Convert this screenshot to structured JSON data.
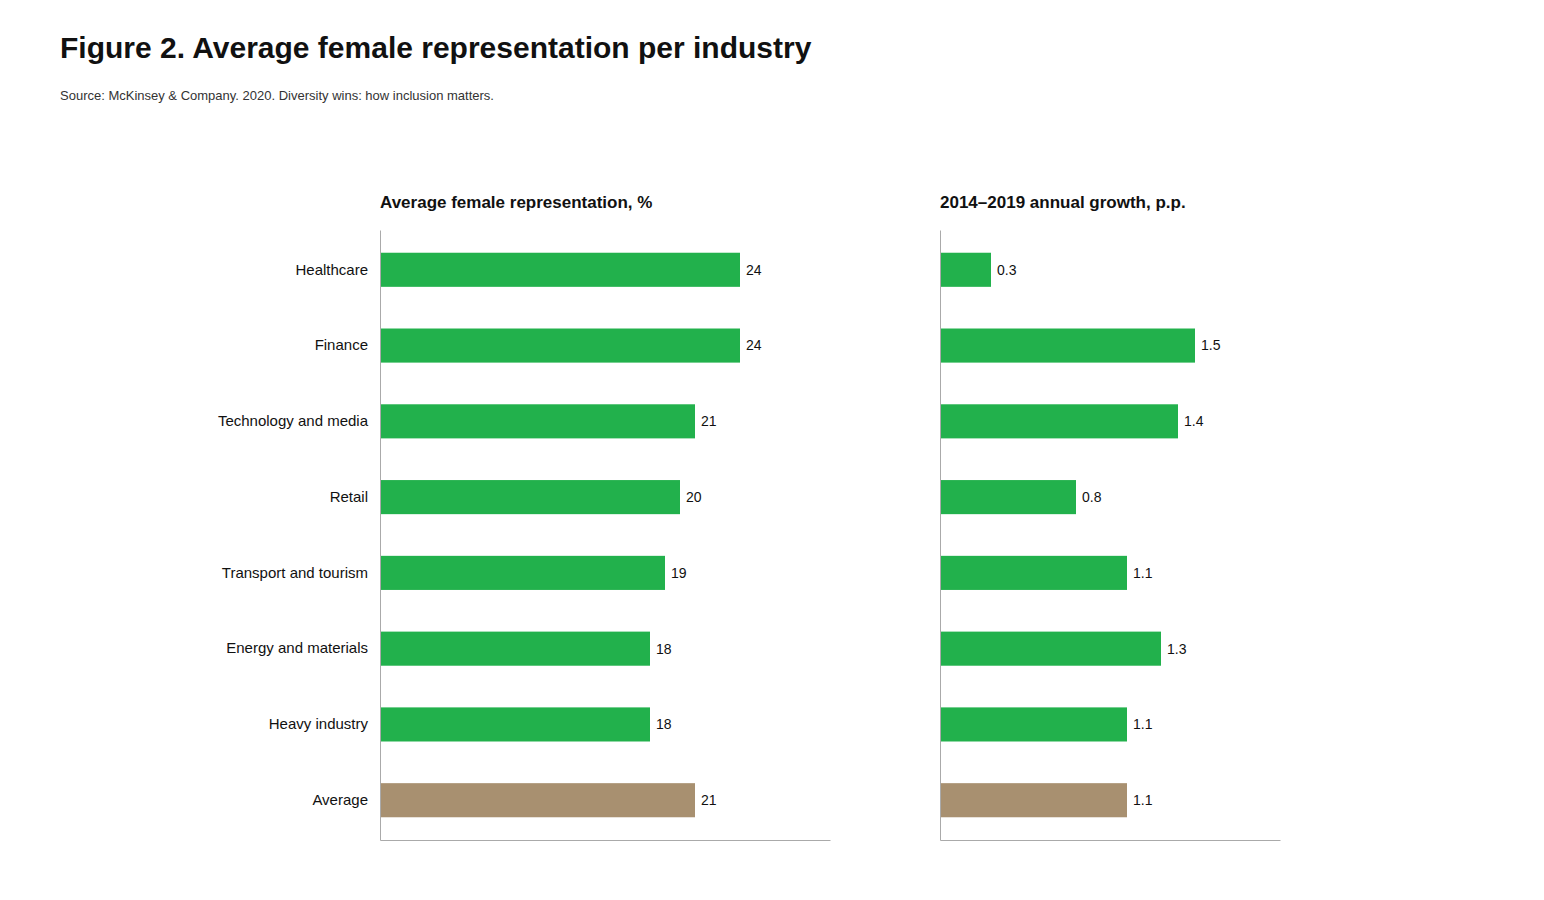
{
  "chart_data": [
    {
      "type": "bar",
      "orientation": "horizontal",
      "title": "Figure 2. Average female representation per industry",
      "subtitle": "Source: McKinsey & Company. 2020. Diversity wins: how inclusion matters.",
      "xlabel": "Average female representation, %",
      "categories": [
        "Healthcare",
        "Finance",
        "Technology and media",
        "Retail",
        "Transport and tourism",
        "Energy and materials",
        "Heavy industry",
        "Average"
      ],
      "values": [
        24,
        24,
        21,
        20,
        19,
        18,
        18,
        21
      ],
      "colors": [
        "#22B14C",
        "#22B14C",
        "#22B14C",
        "#22B14C",
        "#22B14C",
        "#22B14C",
        "#22B14C",
        "#A89070"
      ],
      "xlim": [
        0,
        30
      ],
      "data_labels": true,
      "tick_labels": "y",
      "grid": false
    },
    {
      "type": "bar",
      "orientation": "horizontal",
      "xlabel": "2014–2019 annual growth, p.p.",
      "categories": [
        "Healthcare",
        "Finance",
        "Technology and media",
        "Retail",
        "Transport and tourism",
        "Energy and materials",
        "Heavy industry",
        "Average"
      ],
      "values": [
        0.3,
        1.5,
        1.4,
        0.8,
        1.1,
        1.3,
        1.1,
        1.1
      ],
      "colors": [
        "#22B14C",
        "#22B14C",
        "#22B14C",
        "#22B14C",
        "#22B14C",
        "#22B14C",
        "#22B14C",
        "#A89070"
      ],
      "xlim": [
        0,
        2.0
      ],
      "data_labels": true,
      "tick_labels": false,
      "grid": false
    }
  ]
}
